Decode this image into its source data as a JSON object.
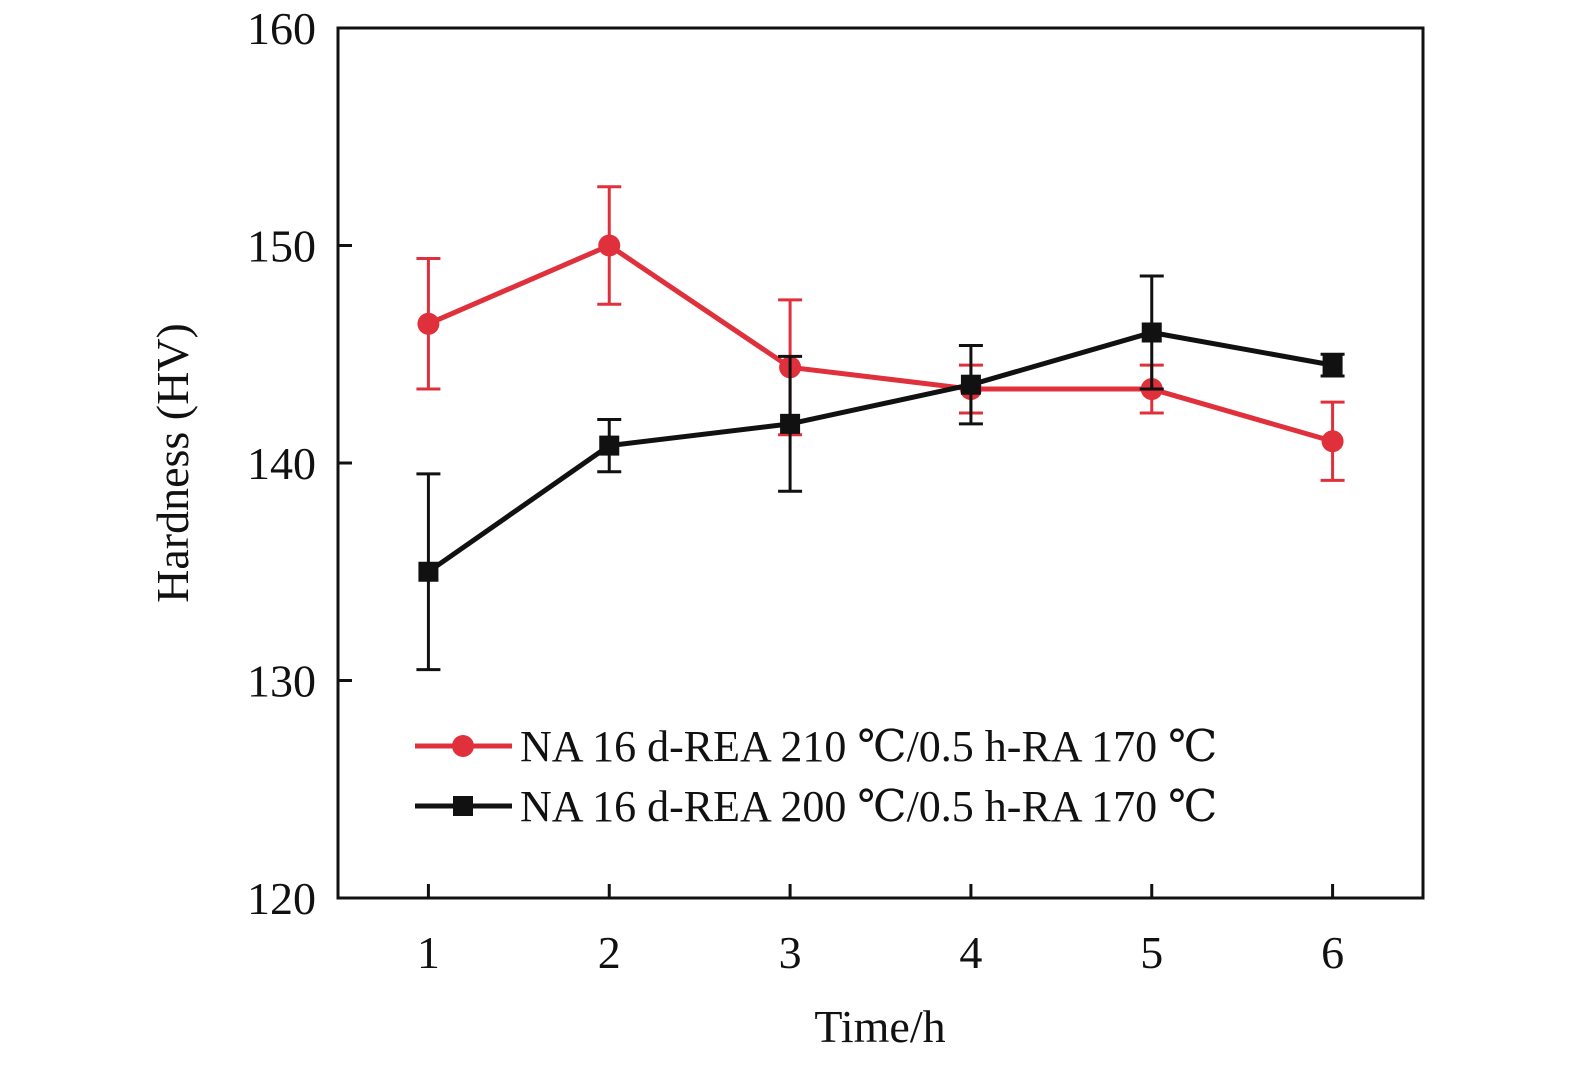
{
  "chart_data": {
    "type": "line",
    "title": "",
    "xlabel": "Time/h",
    "ylabel": "Hardness (HV)",
    "xlim": [
      0.5,
      6.5
    ],
    "ylim": [
      120,
      160
    ],
    "x_ticks": [
      1,
      2,
      3,
      4,
      5,
      6
    ],
    "y_ticks": [
      120,
      130,
      140,
      150,
      160
    ],
    "grid": false,
    "legend_position": "bottom-right",
    "series": [
      {
        "name": "NA 16 d-REA 210 ℃/0.5 h-RA 170 ℃",
        "color": "#e0303b",
        "marker": "circle",
        "x": [
          1,
          2,
          3,
          4,
          5,
          6
        ],
        "y": [
          146.4,
          150.0,
          144.4,
          143.4,
          143.4,
          141.0
        ],
        "err": [
          3.0,
          2.7,
          3.1,
          1.1,
          1.1,
          1.8
        ]
      },
      {
        "name": "NA 16 d-REA 200 ℃/0.5 h-RA 170 ℃",
        "color": "#111111",
        "marker": "square",
        "x": [
          1,
          2,
          3,
          4,
          5,
          6
        ],
        "y": [
          135.0,
          140.8,
          141.8,
          143.6,
          146.0,
          144.5
        ],
        "err": [
          4.5,
          1.2,
          3.1,
          1.8,
          2.6,
          0.5
        ]
      }
    ]
  }
}
